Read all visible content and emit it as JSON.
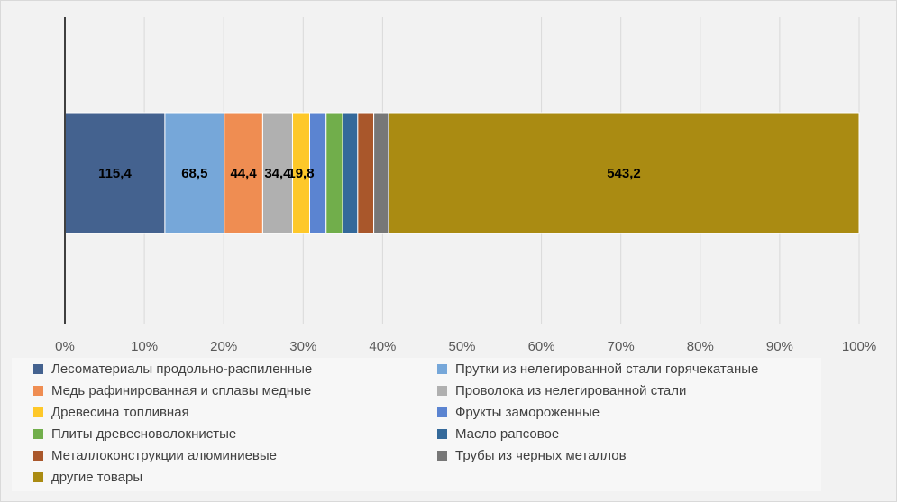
{
  "chart_data": {
    "type": "bar",
    "orientation": "horizontal",
    "stacked": "percent",
    "categories": [
      ""
    ],
    "xlim": [
      0,
      100
    ],
    "x_ticks": [
      "0%",
      "10%",
      "20%",
      "30%",
      "40%",
      "50%",
      "60%",
      "70%",
      "80%",
      "90%",
      "100%"
    ],
    "grid": true,
    "legend_position": "bottom",
    "series": [
      {
        "name": "Лесоматериалы продольно-распиленные",
        "value": 115.4,
        "label": "115,4",
        "color": "#44628f"
      },
      {
        "name": "Прутки из нелегированной стали горячекатаные",
        "value": 68.5,
        "label": "68,5",
        "color": "#76a7d9"
      },
      {
        "name": "Медь рафинированная и сплавы медные",
        "value": 44.4,
        "label": "44,4",
        "color": "#ef8d52"
      },
      {
        "name": "Проволока из нелегированной стали",
        "value": 34.4,
        "label": "34,4",
        "color": "#b0b0b0"
      },
      {
        "name": "Древесина топливная",
        "value": 19.8,
        "label": "19,8",
        "color": "#fec829"
      },
      {
        "name": "Фрукты замороженные",
        "value": 19.0,
        "label": "",
        "color": "#5b84d1"
      },
      {
        "name": "Плиты древесноволокнистые",
        "value": 19.0,
        "label": "",
        "color": "#71ae4b"
      },
      {
        "name": "Масло рапсовое",
        "value": 17.5,
        "label": "",
        "color": "#34699a"
      },
      {
        "name": "Металлоконструкции алюминиевые",
        "value": 18.5,
        "label": "",
        "color": "#a9572b"
      },
      {
        "name": "Трубы из черных металлов",
        "value": 17.0,
        "label": "",
        "color": "#777777"
      },
      {
        "name": "другие товары",
        "value": 543.2,
        "label": "543,2",
        "color": "#aa8b12"
      }
    ]
  }
}
